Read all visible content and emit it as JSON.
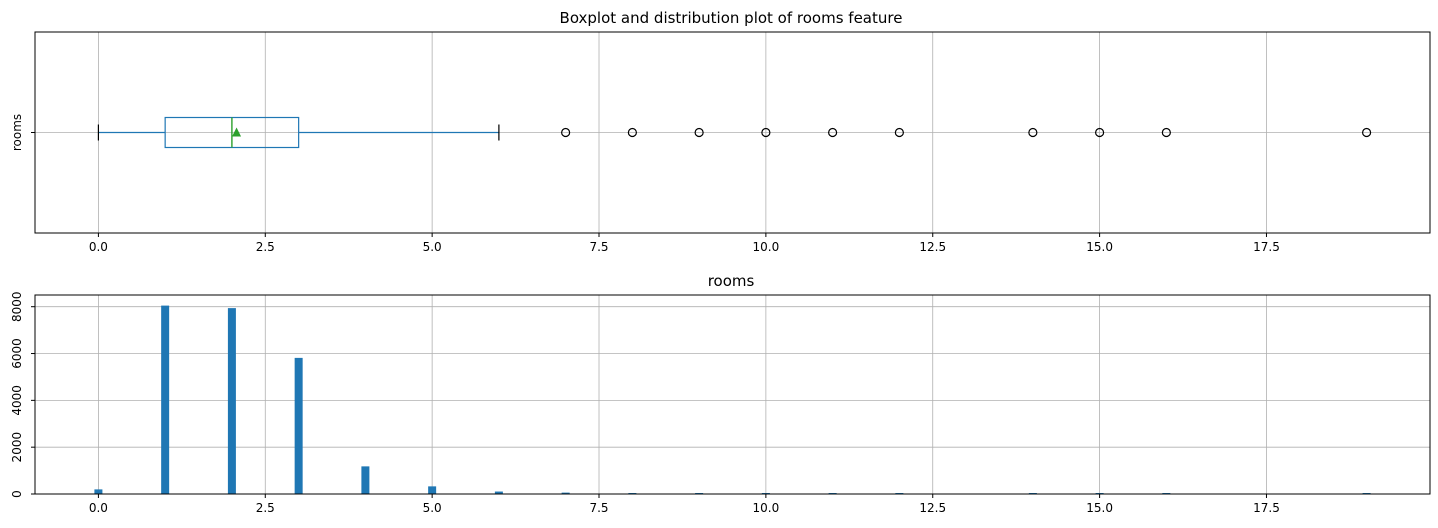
{
  "chart_data": [
    {
      "type": "boxplot",
      "title": "Boxplot and distribution plot of rooms feature",
      "category_label": "rooms",
      "xlim": [
        -0.95,
        19.95
      ],
      "xticks": [
        0.0,
        2.5,
        5.0,
        7.5,
        10.0,
        12.5,
        15.0,
        17.5
      ],
      "xtick_labels": [
        "0.0",
        "2.5",
        "5.0",
        "7.5",
        "10.0",
        "12.5",
        "15.0",
        "17.5"
      ],
      "grid": true,
      "box": {
        "whisker_low": 0,
        "q1": 1,
        "median": 2,
        "q3": 3,
        "whisker_high": 6,
        "mean": 2.07
      },
      "outliers": [
        7,
        8,
        9,
        10,
        11,
        12,
        14,
        15,
        16,
        19
      ],
      "colors": {
        "box": "#1f77b4",
        "median": "#2ca02c",
        "mean": "#2ca02c",
        "whisker_cap": "#000000",
        "outlier": "#000000",
        "grid": "#b0b0b0"
      }
    },
    {
      "type": "bar",
      "title": "rooms",
      "xlim": [
        -0.95,
        19.95
      ],
      "ylim": [
        0,
        8500
      ],
      "xticks": [
        0.0,
        2.5,
        5.0,
        7.5,
        10.0,
        12.5,
        15.0,
        17.5
      ],
      "xtick_labels": [
        "0.0",
        "2.5",
        "5.0",
        "7.5",
        "10.0",
        "12.5",
        "15.0",
        "17.5"
      ],
      "yticks": [
        0,
        2000,
        4000,
        6000,
        8000
      ],
      "ytick_labels": [
        "0",
        "2000",
        "4000",
        "6000",
        "8000"
      ],
      "grid": true,
      "x": [
        0,
        1,
        2,
        3,
        4,
        5,
        6,
        7,
        8,
        9,
        10,
        11,
        12,
        14,
        15,
        16,
        19
      ],
      "values": [
        197,
        8047,
        7940,
        5814,
        1180,
        326,
        105,
        59,
        12,
        8,
        3,
        2,
        1,
        1,
        1,
        1,
        1
      ],
      "colors": {
        "bar": "#1f77b4",
        "grid": "#b0b0b0"
      }
    }
  ]
}
